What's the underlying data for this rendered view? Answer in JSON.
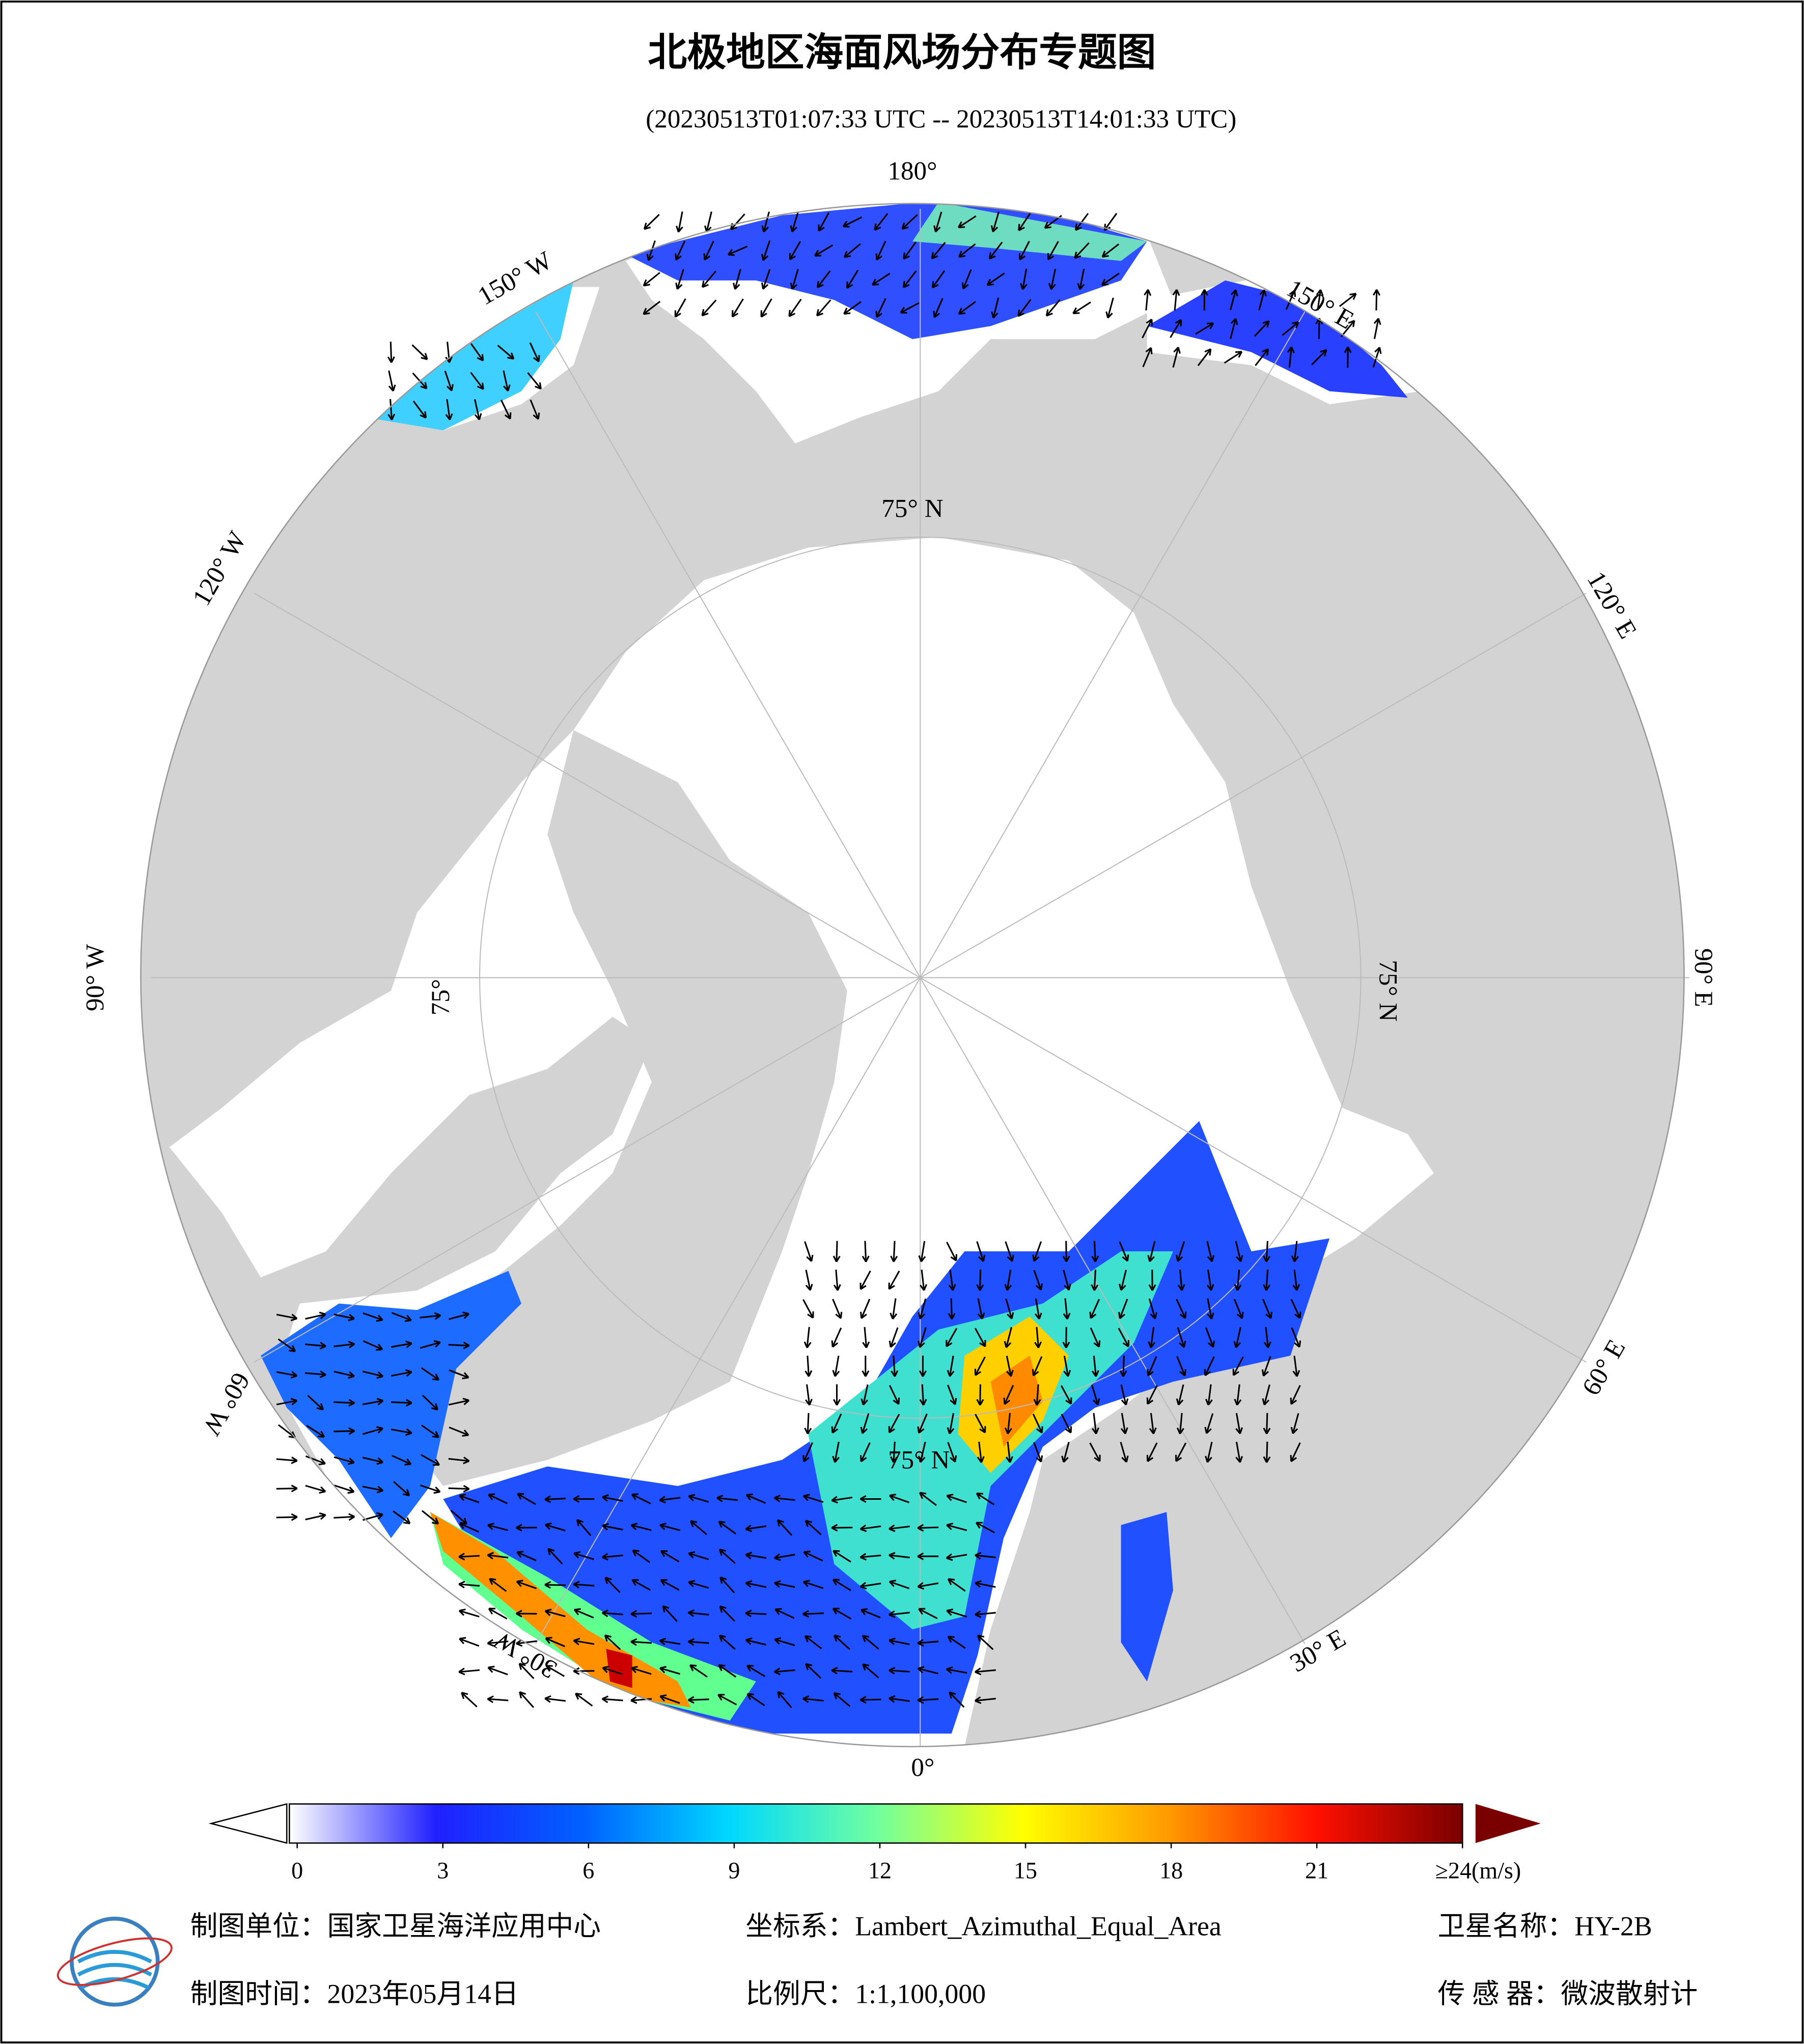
{
  "header": {
    "title": "北极地区海面风场分布专题图",
    "subtitle": "(20230513T01:07:33 UTC -- 20230513T14:01:33 UTC)"
  },
  "map": {
    "longitude_labels": [
      "180°",
      "150° E",
      "120° E",
      "90° E",
      "60° E",
      "30° E",
      "0°",
      "30° W",
      "60° W",
      "90° W",
      "120° W",
      "150° W"
    ],
    "latitude_labels": [
      "75° N",
      "75° N",
      "75° N",
      "75°"
    ]
  },
  "colorbar": {
    "range": [
      0,
      24
    ],
    "ticks": [
      0,
      3,
      6,
      9,
      12,
      15,
      18,
      21,
      {
        "value": 24,
        "label": "≥24(m/s)"
      }
    ],
    "colors": [
      "#ffffff",
      "#2020ff",
      "#0060ff",
      "#00d8ff",
      "#70ffa0",
      "#ffff00",
      "#ff9a00",
      "#ff1000",
      "#7a0000"
    ]
  },
  "footer": {
    "unit": "制图单位：国家卫星海洋应用中心",
    "coordinate_system": "坐标系：Lambert_Azimuthal_Equal_Area",
    "satellite": "卫星名称：HY-2B",
    "date": "制图时间：2023年05月14日",
    "scale": "比例尺：1:1,100,000",
    "sensor": "传 感 器：微波散射计"
  }
}
